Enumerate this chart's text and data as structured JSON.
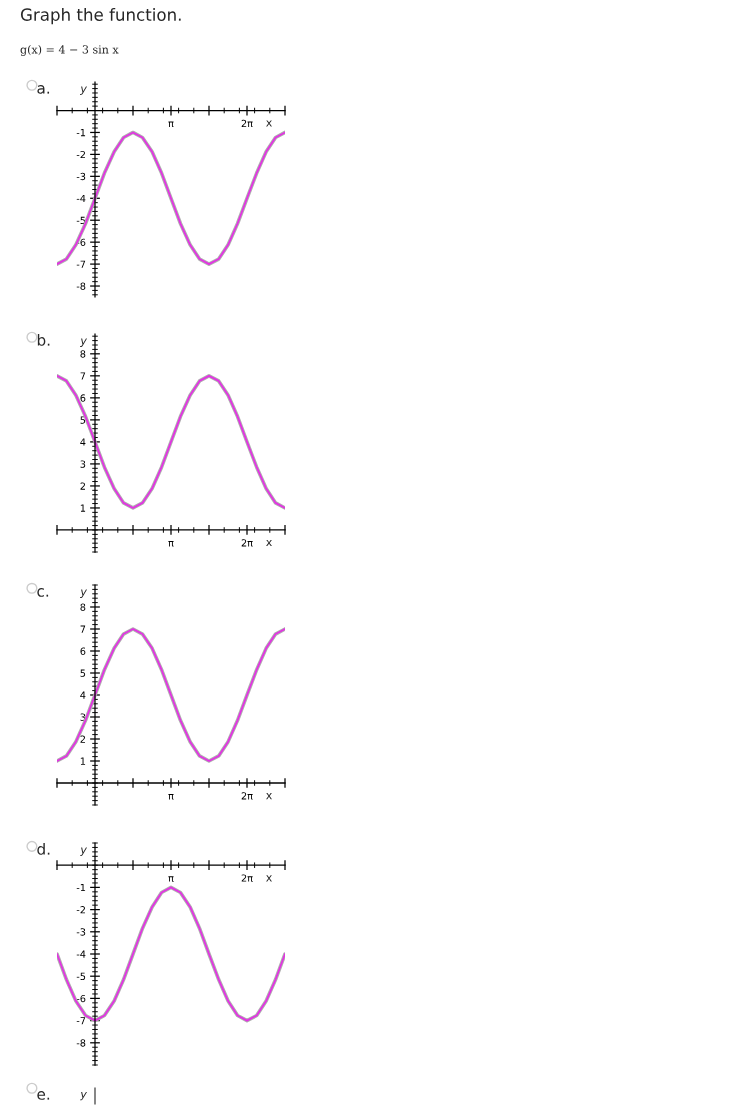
{
  "chart_data": [
    {
      "type": "line",
      "title": "Graph the function.",
      "subtitle": "g(x) = 4 − 3 sin x",
      "annotations": [
        "a."
      ],
      "xlabel": "x",
      "ylabel": "y",
      "line_style": "solid",
      "x": [
        -1.57,
        -1.18,
        -0.79,
        -0.39,
        0,
        0.39,
        0.79,
        1.18,
        1.57,
        1.96,
        2.36,
        2.75,
        3.14,
        3.53,
        3.93,
        4.32,
        4.71,
        5.11,
        5.5,
        5.89,
        6.28,
        6.68,
        7.07,
        7.46,
        7.85
      ],
      "series": [
        {
          "color": "#e332e3",
          "values": [
            -7,
            -6.77,
            -6.12,
            -5.15,
            -4,
            -2.85,
            -1.88,
            -1.23,
            -1,
            -1.23,
            -1.88,
            -2.85,
            -4,
            -5.15,
            -6.12,
            -6.77,
            -7,
            -6.77,
            -6.12,
            -5.15,
            -4,
            -2.85,
            -1.88,
            -1.23,
            -1
          ]
        }
      ],
      "xlim": [
        -1.57,
        7.85
      ],
      "ylim": [
        -8.5,
        1.3
      ],
      "xticks": [
        {
          "value": -1.57,
          "label": null
        },
        {
          "value": 1.57,
          "label": null
        },
        {
          "value": 3.14,
          "label": "π"
        },
        {
          "value": 4.71,
          "label": null
        },
        {
          "value": 6.28,
          "label": "2π"
        },
        {
          "value": 7.85,
          "label": null
        }
      ],
      "yticks": [
        -1,
        -2,
        -3,
        -4,
        -5,
        -6,
        -7,
        -8
      ]
    },
    {
      "type": "line",
      "annotations": [
        "b."
      ],
      "xlabel": "x",
      "ylabel": "y",
      "line_style": "solid",
      "x": [
        -1.57,
        -1.18,
        -0.79,
        -0.39,
        0,
        0.39,
        0.79,
        1.18,
        1.57,
        1.96,
        2.36,
        2.75,
        3.14,
        3.53,
        3.93,
        4.32,
        4.71,
        5.11,
        5.5,
        5.89,
        6.28,
        6.68,
        7.07,
        7.46,
        7.85
      ],
      "series": [
        {
          "color": "#e332e3",
          "values": [
            7,
            6.77,
            6.12,
            5.15,
            4,
            2.85,
            1.88,
            1.23,
            1,
            1.23,
            1.88,
            2.85,
            4,
            5.15,
            6.12,
            6.77,
            7,
            6.77,
            6.12,
            5.15,
            4,
            2.85,
            1.88,
            1.23,
            1
          ]
        }
      ],
      "xlim": [
        -1.57,
        7.85
      ],
      "ylim": [
        -1,
        8.9
      ],
      "xticks": [
        {
          "value": -1.57,
          "label": null
        },
        {
          "value": 1.57,
          "label": null
        },
        {
          "value": 3.14,
          "label": "π"
        },
        {
          "value": 4.71,
          "label": null
        },
        {
          "value": 6.28,
          "label": "2π"
        },
        {
          "value": 7.85,
          "label": null
        }
      ],
      "yticks": [
        1,
        2,
        3,
        4,
        5,
        6,
        7,
        8
      ]
    },
    {
      "type": "line",
      "annotations": [
        "c."
      ],
      "xlabel": "x",
      "ylabel": "y",
      "line_style": "solid",
      "x": [
        -1.57,
        -1.18,
        -0.79,
        -0.39,
        0,
        0.39,
        0.79,
        1.18,
        1.57,
        1.96,
        2.36,
        2.75,
        3.14,
        3.53,
        3.93,
        4.32,
        4.71,
        5.11,
        5.5,
        5.89,
        6.28,
        6.68,
        7.07,
        7.46,
        7.85
      ],
      "series": [
        {
          "color": "#e332e3",
          "values": [
            1,
            1.23,
            1.88,
            2.85,
            4,
            5.15,
            6.12,
            6.77,
            7,
            6.77,
            6.12,
            5.15,
            4,
            2.85,
            1.88,
            1.23,
            1,
            1.23,
            1.88,
            2.85,
            4,
            5.15,
            6.12,
            6.77,
            7
          ]
        }
      ],
      "xlim": [
        -1.57,
        7.85
      ],
      "ylim": [
        -1,
        9
      ],
      "xticks": [
        {
          "value": -1.57,
          "label": null
        },
        {
          "value": 1.57,
          "label": null
        },
        {
          "value": 3.14,
          "label": "π"
        },
        {
          "value": 4.71,
          "label": null
        },
        {
          "value": 6.28,
          "label": "2π"
        },
        {
          "value": 7.85,
          "label": null
        }
      ],
      "yticks": [
        1,
        2,
        3,
        4,
        5,
        6,
        7,
        8
      ]
    },
    {
      "type": "line",
      "annotations": [
        "d."
      ],
      "xlabel": "x",
      "ylabel": "y",
      "line_style": "solid",
      "x": [
        -1.57,
        -1.18,
        -0.79,
        -0.39,
        0,
        0.39,
        0.79,
        1.18,
        1.57,
        1.96,
        2.36,
        2.75,
        3.14,
        3.53,
        3.93,
        4.32,
        4.71,
        5.11,
        5.5,
        5.89,
        6.28,
        6.68,
        7.07,
        7.46,
        7.85
      ],
      "series": [
        {
          "color": "#e332e3",
          "values": [
            -4,
            -5.15,
            -6.12,
            -6.77,
            -7,
            -6.77,
            -6.12,
            -5.15,
            -4,
            -2.85,
            -1.88,
            -1.23,
            -1,
            -1.23,
            -1.88,
            -2.85,
            -4,
            -5.15,
            -6.12,
            -6.77,
            -7,
            -6.77,
            -6.12,
            -5.15,
            -4
          ]
        }
      ],
      "xlim": [
        -1.57,
        7.85
      ],
      "ylim": [
        -9,
        1
      ],
      "xticks": [
        {
          "value": -1.57,
          "label": null
        },
        {
          "value": 1.57,
          "label": null
        },
        {
          "value": 3.14,
          "label": "π"
        },
        {
          "value": 4.71,
          "label": null
        },
        {
          "value": 6.28,
          "label": "2π"
        },
        {
          "value": 7.85,
          "label": null
        }
      ],
      "yticks": [
        -1,
        -2,
        -3,
        -4,
        -5,
        -6,
        -7,
        -8
      ]
    },
    {
      "type": "other",
      "annotations": [
        "e."
      ],
      "ylabel": "y"
    }
  ]
}
